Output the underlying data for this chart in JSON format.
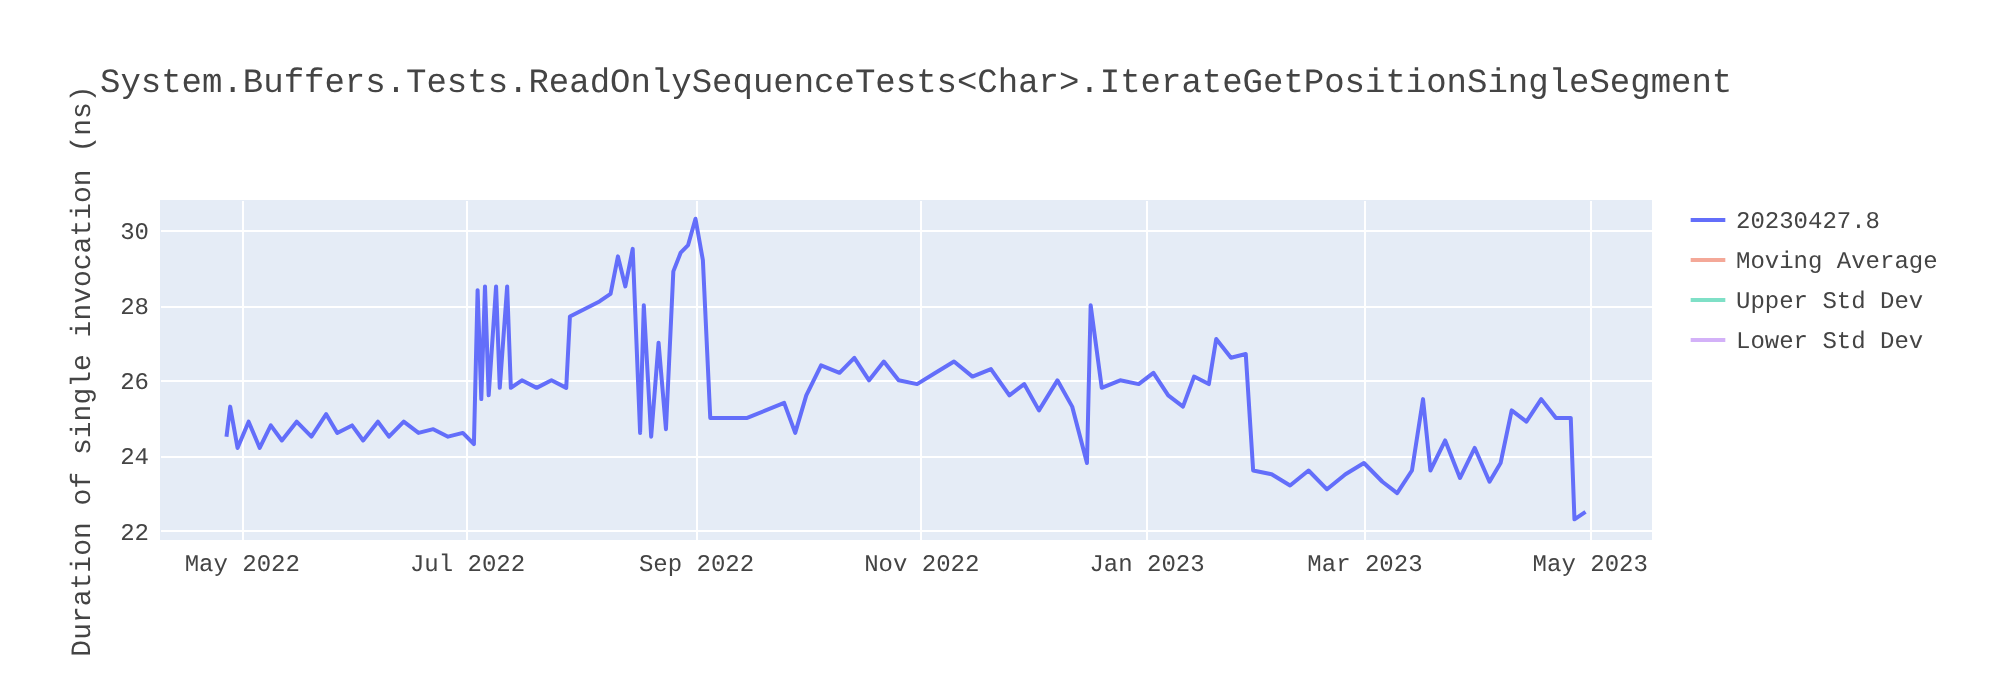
{
  "chart_data": {
    "type": "line",
    "title": "System.Buffers.Tests.ReadOnlySequenceTests<Char>.IterateGetPositionSingleSegment",
    "ylabel": "Duration of single invocation (ns)",
    "x": [
      "2022-04-27",
      "2022-04-28",
      "2022-04-30",
      "2022-05-03",
      "2022-05-06",
      "2022-05-09",
      "2022-05-12",
      "2022-05-16",
      "2022-05-20",
      "2022-05-24",
      "2022-05-27",
      "2022-05-31",
      "2022-06-03",
      "2022-06-07",
      "2022-06-10",
      "2022-06-14",
      "2022-06-18",
      "2022-06-22",
      "2022-06-26",
      "2022-06-30",
      "2022-07-03",
      "2022-07-04",
      "2022-07-05",
      "2022-07-06",
      "2022-07-07",
      "2022-07-09",
      "2022-07-10",
      "2022-07-12",
      "2022-07-13",
      "2022-07-16",
      "2022-07-20",
      "2022-07-24",
      "2022-07-28",
      "2022-07-29",
      "2022-08-02",
      "2022-08-06",
      "2022-08-09",
      "2022-08-11",
      "2022-08-13",
      "2022-08-15",
      "2022-08-17",
      "2022-08-18",
      "2022-08-20",
      "2022-08-22",
      "2022-08-24",
      "2022-08-26",
      "2022-08-28",
      "2022-08-30",
      "2022-09-01",
      "2022-09-03",
      "2022-09-05",
      "2022-09-10",
      "2022-09-15",
      "2022-09-20",
      "2022-09-25",
      "2022-09-28",
      "2022-10-01",
      "2022-10-05",
      "2022-10-10",
      "2022-10-14",
      "2022-10-18",
      "2022-10-22",
      "2022-10-26",
      "2022-10-31",
      "2022-11-05",
      "2022-11-10",
      "2022-11-15",
      "2022-11-20",
      "2022-11-25",
      "2022-11-29",
      "2022-12-03",
      "2022-12-08",
      "2022-12-12",
      "2022-12-16",
      "2022-12-17",
      "2022-12-20",
      "2022-12-25",
      "2022-12-30",
      "2023-01-03",
      "2023-01-07",
      "2023-01-11",
      "2023-01-14",
      "2023-01-18",
      "2023-01-20",
      "2023-01-24",
      "2023-01-28",
      "2023-01-30",
      "2023-02-04",
      "2023-02-09",
      "2023-02-14",
      "2023-02-19",
      "2023-02-24",
      "2023-03-01",
      "2023-03-06",
      "2023-03-10",
      "2023-03-14",
      "2023-03-17",
      "2023-03-19",
      "2023-03-23",
      "2023-03-27",
      "2023-03-31",
      "2023-04-04",
      "2023-04-07",
      "2023-04-10",
      "2023-04-14",
      "2023-04-18",
      "2023-04-22",
      "2023-04-26",
      "2023-04-27",
      "2023-04-30"
    ],
    "series": [
      {
        "name": "20230427.8",
        "color": "#636efa",
        "values": [
          24.5,
          25.3,
          24.2,
          24.9,
          24.2,
          24.8,
          24.4,
          24.9,
          24.5,
          25.1,
          24.6,
          24.8,
          24.4,
          24.9,
          24.5,
          24.9,
          24.6,
          24.7,
          24.5,
          24.6,
          24.3,
          28.4,
          25.5,
          28.5,
          25.6,
          28.5,
          25.8,
          28.5,
          25.8,
          26.0,
          25.8,
          26.0,
          25.8,
          27.7,
          27.9,
          28.1,
          28.3,
          29.3,
          28.5,
          29.5,
          24.6,
          28.0,
          24.5,
          27.0,
          24.7,
          28.9,
          29.4,
          29.6,
          30.3,
          29.2,
          25.0,
          25.0,
          25.0,
          25.2,
          25.4,
          24.6,
          25.6,
          26.4,
          26.2,
          26.6,
          26.0,
          26.5,
          26.0,
          25.9,
          26.2,
          26.5,
          26.1,
          26.3,
          25.6,
          25.9,
          25.2,
          26.0,
          25.3,
          23.8,
          28.0,
          25.8,
          26.0,
          25.9,
          26.2,
          25.6,
          25.3,
          26.1,
          25.9,
          27.1,
          26.6,
          26.7,
          23.6,
          23.5,
          23.2,
          23.6,
          23.1,
          23.5,
          23.8,
          23.3,
          23.0,
          23.6,
          25.5,
          23.6,
          24.4,
          23.4,
          24.2,
          23.3,
          23.8,
          25.2,
          24.9,
          25.5,
          25.0,
          25.0,
          22.3,
          22.5
        ]
      },
      {
        "name": "Moving Average",
        "color": "#f4a898",
        "values": [
          null,
          null,
          null,
          null,
          null,
          null,
          null,
          null,
          null,
          null,
          null,
          null,
          null,
          null,
          null,
          null,
          null,
          null,
          null,
          null,
          null,
          null,
          null,
          null,
          null,
          null,
          null,
          null,
          null,
          null,
          null,
          null,
          null,
          null,
          null,
          null,
          null,
          null,
          null,
          null,
          null,
          null,
          null,
          null,
          null,
          null,
          null,
          null,
          null,
          null,
          null,
          null,
          null,
          null,
          null,
          null,
          null,
          null,
          null,
          null,
          null,
          null,
          null,
          null,
          null,
          null,
          null,
          null,
          null,
          null,
          null,
          null,
          null,
          null,
          null,
          null,
          null,
          null,
          null,
          null,
          null,
          null,
          null,
          null,
          null,
          null,
          null,
          null,
          null,
          null,
          null,
          null,
          null,
          null,
          null,
          null,
          null,
          null,
          null,
          null,
          null,
          null,
          null,
          null,
          null,
          null,
          null,
          null,
          null,
          null
        ]
      },
      {
        "name": "Upper Std Dev",
        "color": "#7fe0c7",
        "values": [
          null,
          null,
          null,
          null,
          null,
          null,
          null,
          null,
          null,
          null,
          null,
          null,
          null,
          null,
          null,
          null,
          null,
          null,
          null,
          null,
          null,
          null,
          null,
          null,
          null,
          null,
          null,
          null,
          null,
          null,
          null,
          null,
          null,
          null,
          null,
          null,
          null,
          null,
          null,
          null,
          null,
          null,
          null,
          null,
          null,
          null,
          null,
          null,
          null,
          null,
          null,
          null,
          null,
          null,
          null,
          null,
          null,
          null,
          null,
          null,
          null,
          null,
          null,
          null,
          null,
          null,
          null,
          null,
          null,
          null,
          null,
          null,
          null,
          null,
          null,
          null,
          null,
          null,
          null,
          null,
          null,
          null,
          null,
          null,
          null,
          null,
          null,
          null,
          null,
          null,
          null,
          null,
          null,
          null,
          null,
          null,
          null,
          null,
          null,
          null,
          null,
          null,
          null,
          null,
          null,
          null,
          null,
          null,
          null,
          null
        ]
      },
      {
        "name": "Lower Std Dev",
        "color": "#d3b1f8",
        "values": [
          null,
          null,
          null,
          null,
          null,
          null,
          null,
          null,
          null,
          null,
          null,
          null,
          null,
          null,
          null,
          null,
          null,
          null,
          null,
          null,
          null,
          null,
          null,
          null,
          null,
          null,
          null,
          null,
          null,
          null,
          null,
          null,
          null,
          null,
          null,
          null,
          null,
          null,
          null,
          null,
          null,
          null,
          null,
          null,
          null,
          null,
          null,
          null,
          null,
          null,
          null,
          null,
          null,
          null,
          null,
          null,
          null,
          null,
          null,
          null,
          null,
          null,
          null,
          null,
          null,
          null,
          null,
          null,
          null,
          null,
          null,
          null,
          null,
          null,
          null,
          null,
          null,
          null,
          null,
          null,
          null,
          null,
          null,
          null,
          null,
          null,
          null,
          null,
          null,
          null,
          null,
          null,
          null,
          null,
          null,
          null,
          null,
          null,
          null,
          null,
          null,
          null,
          null,
          null,
          null,
          null,
          null,
          null,
          null,
          null
        ]
      }
    ],
    "xlim": [
      "2022-04-09",
      "2023-05-18"
    ],
    "ylim": [
      21.75,
      30.8
    ],
    "xticks": [
      {
        "value": "2022-05-01",
        "label": "May 2022"
      },
      {
        "value": "2022-07-01",
        "label": "Jul 2022"
      },
      {
        "value": "2022-09-01",
        "label": "Sep 2022"
      },
      {
        "value": "2022-11-01",
        "label": "Nov 2022"
      },
      {
        "value": "2023-01-01",
        "label": "Jan 2023"
      },
      {
        "value": "2023-03-01",
        "label": "Mar 2023"
      },
      {
        "value": "2023-05-01",
        "label": "May 2023"
      }
    ],
    "yticks": [
      22,
      24,
      26,
      28,
      30
    ],
    "grid": true,
    "legend": "top right",
    "line_style": "solid"
  }
}
